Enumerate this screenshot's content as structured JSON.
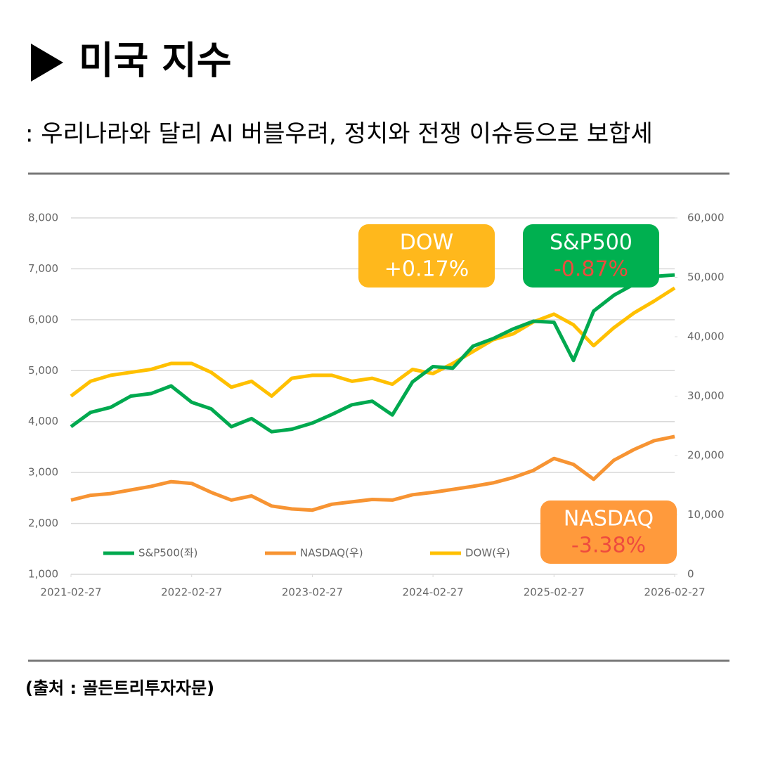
{
  "header": {
    "title": "미국 지수",
    "subtitle": ": 우리나라와 달리 AI 버블우려, 정치와 전쟁 이슈등으로 보합세"
  },
  "chart_data": {
    "type": "line",
    "x": [
      "2021-02-27",
      "2021-04-27",
      "2021-06-27",
      "2021-08-27",
      "2021-10-27",
      "2021-12-27",
      "2022-02-27",
      "2022-04-27",
      "2022-06-27",
      "2022-08-27",
      "2022-10-27",
      "2022-12-27",
      "2023-02-27",
      "2023-04-27",
      "2023-06-27",
      "2023-08-27",
      "2023-10-27",
      "2023-12-27",
      "2024-02-27",
      "2024-04-27",
      "2024-06-27",
      "2024-08-27",
      "2024-10-27",
      "2024-12-27",
      "2025-02-27",
      "2025-04-27",
      "2025-06-27",
      "2025-08-27",
      "2025-10-27",
      "2025-12-27",
      "2026-02-27"
    ],
    "series": [
      {
        "name": "S&P500(좌)",
        "color": "#00a94f",
        "values": [
          3900,
          4180,
          4280,
          4500,
          4550,
          4700,
          4380,
          4250,
          3900,
          4060,
          3800,
          3850,
          3970,
          4140,
          4330,
          4400,
          4130,
          4780,
          5080,
          5050,
          5480,
          5630,
          5820,
          5970,
          5950,
          5200,
          6170,
          6480,
          6700,
          6850,
          6880
        ]
      },
      {
        "name": "NASDAQ(우)",
        "color": "#f79433",
        "axis": "y2",
        "values": [
          12500,
          13300,
          13600,
          14200,
          14800,
          15600,
          15300,
          13800,
          12500,
          13200,
          11500,
          11000,
          10800,
          11800,
          12200,
          12600,
          12500,
          13400,
          13800,
          14300,
          14800,
          15400,
          16300,
          17500,
          19500,
          18500,
          16000,
          19200,
          21000,
          22500,
          23200
        ]
      },
      {
        "name": "DOW(우)",
        "color": "#ffc000",
        "axis": "y2",
        "values": [
          30000,
          32500,
          33500,
          34000,
          34500,
          35500,
          35500,
          34000,
          31500,
          32500,
          30000,
          33000,
          33500,
          33500,
          32500,
          33000,
          32000,
          34500,
          33800,
          35500,
          37500,
          39500,
          40500,
          42500,
          43800,
          42000,
          38500,
          41500,
          44000,
          46000,
          48200
        ]
      }
    ],
    "xticks": [
      "2021-02-27",
      "2022-02-27",
      "2023-02-27",
      "2024-02-27",
      "2025-02-27",
      "2026-02-27"
    ],
    "ylim": [
      1000,
      8000
    ],
    "yticks": [
      {
        "value": 1000,
        "label": "1,000"
      },
      {
        "value": 2000,
        "label": "2,000"
      },
      {
        "value": 3000,
        "label": "3,000"
      },
      {
        "value": 4000,
        "label": "4,000"
      },
      {
        "value": 5000,
        "label": "5,000"
      },
      {
        "value": 6000,
        "label": "6,000"
      },
      {
        "value": 7000,
        "label": "7,000"
      },
      {
        "value": 8000,
        "label": "8,000"
      }
    ],
    "y2lim": [
      0,
      60000
    ],
    "y2ticks": [
      0,
      {
        "value": 10000,
        "label": "10,000"
      },
      {
        "value": 20000,
        "label": "20,000"
      },
      {
        "value": 30000,
        "label": "30,000"
      },
      {
        "value": 40000,
        "label": "40,000"
      },
      {
        "value": 50000,
        "label": "50,000"
      },
      {
        "value": 60000,
        "label": "60,000"
      }
    ],
    "grid": true,
    "legend": "lower left",
    "annotations": [
      {
        "title": "DOW",
        "change": "+0.17%",
        "color": "#ffb81c",
        "change_color": "#ffffff"
      },
      {
        "title": "S&P500",
        "change": "-0.87%",
        "color": "#00b050",
        "change_color": "#ee4b3e"
      },
      {
        "title": "NASDAQ",
        "change": "-3.38%",
        "color": "#ff9a3c",
        "change_color": "#ee4b3e"
      }
    ]
  },
  "footer": {
    "source": "(출처 : 골든트리투자자문)"
  }
}
